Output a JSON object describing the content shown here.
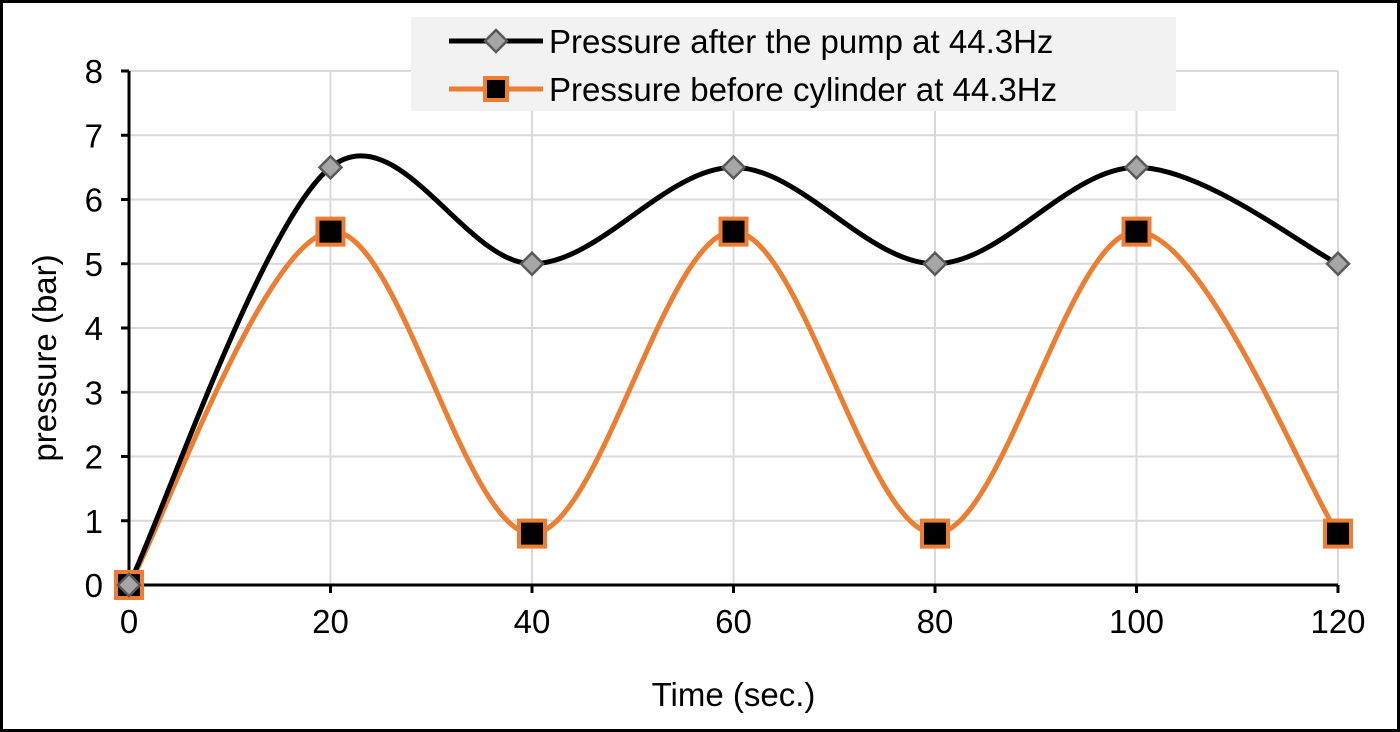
{
  "chart_data": {
    "type": "line",
    "smooth": true,
    "title": "",
    "xlabel": "Time (sec.)",
    "ylabel": "pressure (bar)",
    "xlim": [
      0,
      120
    ],
    "ylim": [
      0,
      8
    ],
    "xticks": [
      0,
      20,
      40,
      60,
      80,
      100,
      120
    ],
    "yticks": [
      0,
      1,
      2,
      3,
      4,
      5,
      6,
      7,
      8
    ],
    "grid": true,
    "legend_position": "top-center",
    "x": [
      0,
      20,
      40,
      60,
      80,
      100,
      120
    ],
    "series": [
      {
        "name": "Pressure after the pump at 44.3Hz",
        "values": [
          0,
          6.5,
          5.0,
          6.5,
          5.0,
          6.5,
          5.0
        ],
        "line_color": "#000000",
        "marker": "diamond",
        "marker_fill": "#a6a6a6",
        "marker_stroke": "#595959"
      },
      {
        "name": "Pressure before cylinder at 44.3Hz",
        "values": [
          0,
          5.5,
          0.8,
          5.5,
          0.8,
          5.5,
          0.8
        ],
        "line_color": "#ed7d31",
        "marker": "square",
        "marker_fill": "#000000",
        "marker_stroke": "#ed7d31"
      }
    ]
  }
}
